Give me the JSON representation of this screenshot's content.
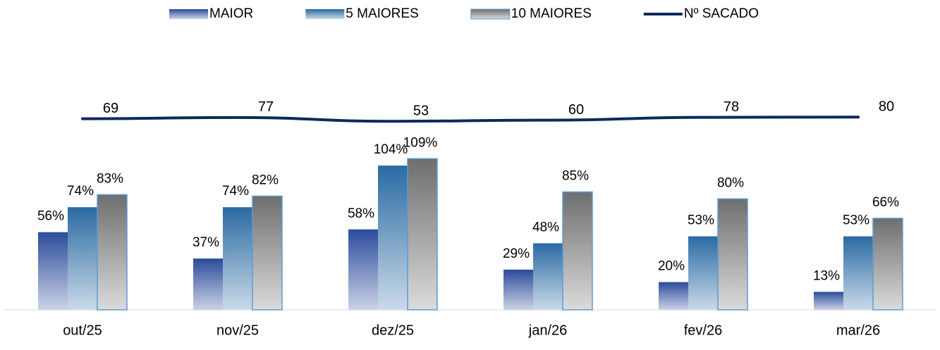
{
  "chart_data": {
    "type": "bar",
    "categories": [
      "out/25",
      "nov/25",
      "dez/25",
      "jan/26",
      "fev/26",
      "mar/26"
    ],
    "ylim": [
      0,
      200
    ],
    "y2lim": [
      -1150,
      620
    ],
    "series": [
      {
        "name": "MAIOR",
        "color": "#2b4c9b",
        "values": [
          56,
          37,
          58,
          29,
          20,
          13
        ],
        "value_labels": [
          "56%",
          "37%",
          "58%",
          "29%",
          "20%",
          "13%"
        ]
      },
      {
        "name": "5 MAIORES",
        "color": "#2a6aa3",
        "values": [
          74,
          74,
          104,
          48,
          53,
          53
        ],
        "value_labels": [
          "74%",
          "74%",
          "104%",
          "48%",
          "53%",
          "53%"
        ]
      },
      {
        "name": "10 MAIORES",
        "color": "#6e6e6e",
        "values": [
          83,
          82,
          109,
          85,
          80,
          66
        ],
        "value_labels": [
          "83%",
          "82%",
          "109%",
          "85%",
          "80%",
          "66%"
        ]
      },
      {
        "name": "Nº SACADO",
        "type": "line",
        "axis": "y2",
        "color": "#0b2a5e",
        "values": [
          69,
          77,
          53,
          60,
          78,
          80
        ]
      }
    ]
  }
}
